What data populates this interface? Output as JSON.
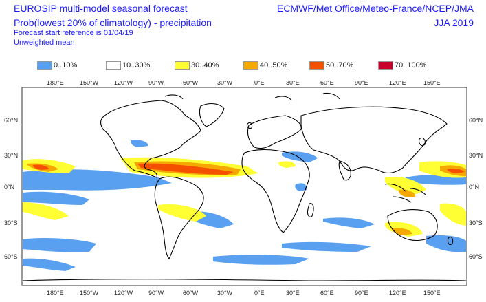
{
  "header": {
    "title_line1": "EUROSIP multi-model seasonal forecast",
    "title_line2": "Prob(lowest 20% of climatology) - precipitation",
    "forecast_ref": "Forecast start reference is 01/04/19",
    "weighting": "Unweighted mean",
    "models": "ECMWF/Met Office/Meteo-France/NCEP/JMA",
    "season": "JJA 2019"
  },
  "legend": [
    {
      "label": "0..10%",
      "color": "#5aa0f0"
    },
    {
      "label": "10..30%",
      "color": "#ffffff"
    },
    {
      "label": "30..40%",
      "color": "#ffff33"
    },
    {
      "label": "40..50%",
      "color": "#f5a800"
    },
    {
      "label": "50..70%",
      "color": "#f55000"
    },
    {
      "label": "70..100%",
      "color": "#c8002a"
    }
  ],
  "axes": {
    "lon_labels": [
      "180°E",
      "150°W",
      "120°W",
      "90°W",
      "60°W",
      "30°W",
      "0°E",
      "30°E",
      "60°E",
      "90°E",
      "120°E",
      "150°E"
    ],
    "lat_labels": [
      "60°N",
      "30°N",
      "0°N",
      "30°S",
      "60°S"
    ]
  }
}
